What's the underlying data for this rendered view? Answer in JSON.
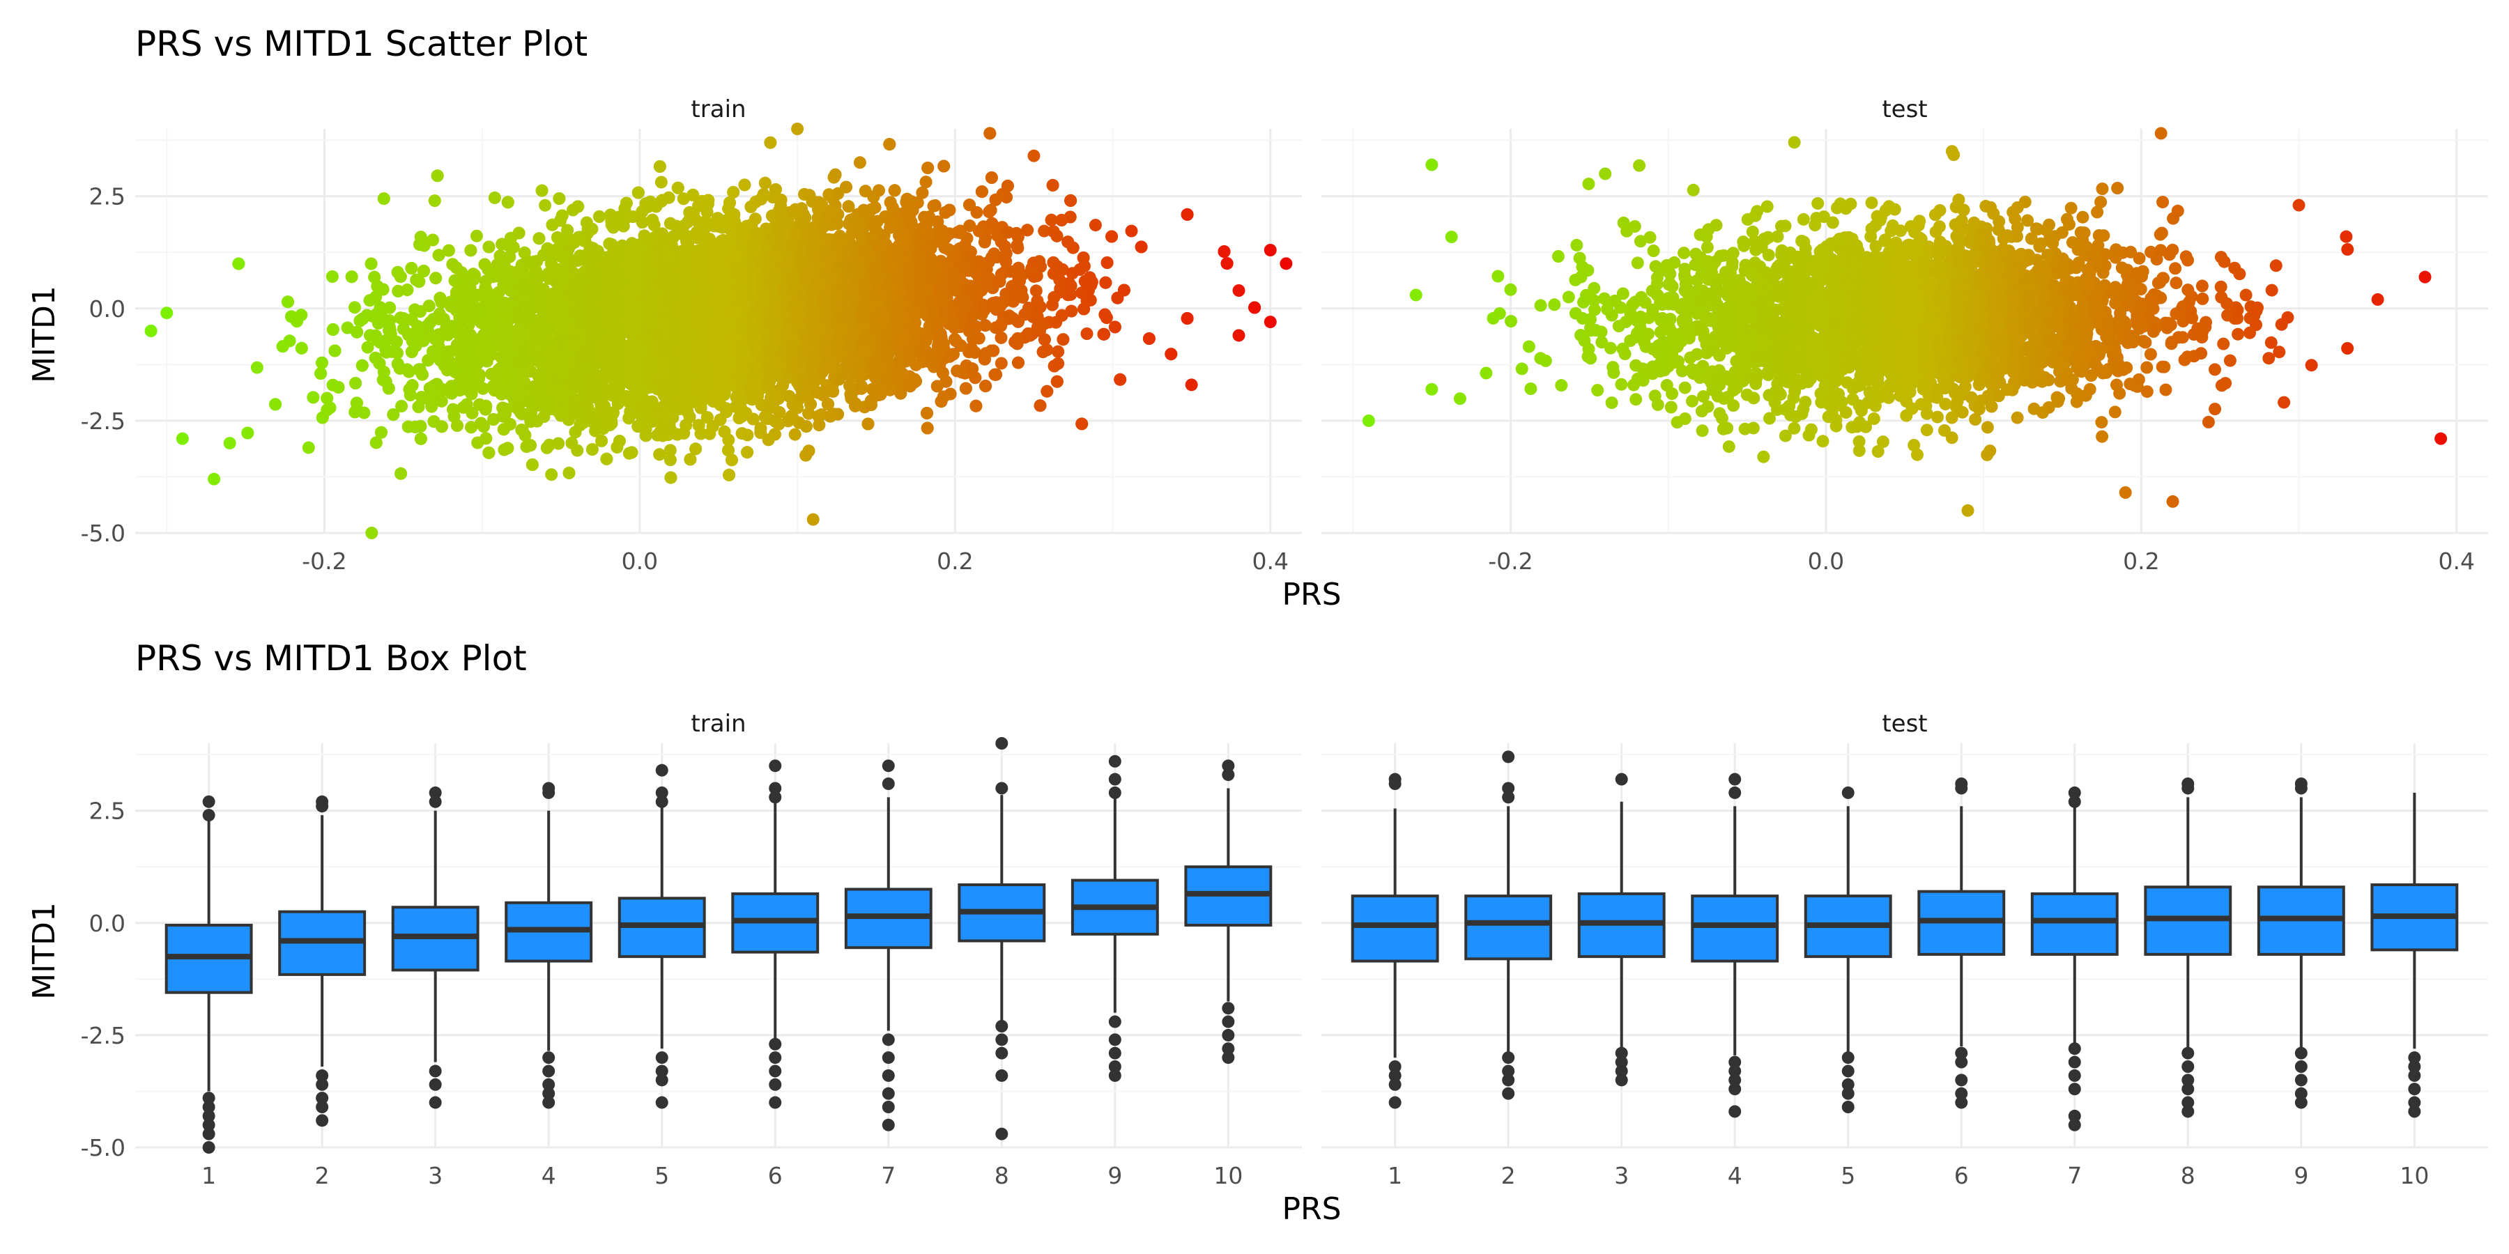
{
  "colors": {
    "grid_major": "#ebebeb",
    "grid_minor": "#f5f5f5",
    "text": "#222222",
    "tick_text": "#4d4d4d",
    "box_fill": "#1e90ff",
    "box_stroke": "#333333",
    "outlier": "#333333",
    "gradient_low": "#7cf000",
    "gradient_mid": "#c2b800",
    "gradient_high": "#f00000"
  },
  "chart_data": [
    {
      "type": "scatter",
      "title": "PRS vs MITD1 Scatter Plot",
      "xlabel": "PRS",
      "ylabel": "MITD1",
      "grid": true,
      "color_scale": "gradient by PRS: green (low) to red (high)",
      "x_ticks": [
        -0.2,
        0.0,
        0.2,
        0.4
      ],
      "x_tick_labels": [
        "-0.2",
        "0.0",
        "0.2",
        "0.4"
      ],
      "y_ticks": [
        -5.0,
        -2.5,
        0.0,
        2.5
      ],
      "y_tick_labels": [
        "-5.0",
        "-2.5",
        "0.0",
        "2.5"
      ],
      "ylim": [
        -5.0,
        4.0
      ],
      "panels": [
        {
          "facet": "train",
          "xlim": [
            -0.32,
            0.42
          ],
          "x_mean": 0.05,
          "x_sd": 0.09,
          "y_intercept": -0.35,
          "y_slope": 3.4,
          "y_resid_sd": 1.05,
          "approx_points": 60000,
          "extreme_points": [
            {
              "x": 0.41,
              "y": 1.0
            },
            {
              "x": 0.4,
              "y": 1.3
            },
            {
              "x": 0.4,
              "y": -0.3
            },
            {
              "x": 0.38,
              "y": 0.4
            },
            {
              "x": 0.38,
              "y": -0.6
            },
            {
              "x": 0.35,
              "y": -1.7
            },
            {
              "x": -0.31,
              "y": -0.5
            },
            {
              "x": -0.3,
              "y": -0.1
            },
            {
              "x": -0.29,
              "y": -2.9
            },
            {
              "x": -0.27,
              "y": -3.8
            },
            {
              "x": -0.26,
              "y": -3.0
            },
            {
              "x": -0.21,
              "y": -3.1
            },
            {
              "x": -0.17,
              "y": -5.0
            },
            {
              "x": 0.11,
              "y": -4.7
            },
            {
              "x": 0.1,
              "y": 4.0
            },
            {
              "x": 0.25,
              "y": 3.4
            },
            {
              "x": -0.13,
              "y": 2.4
            }
          ]
        },
        {
          "facet": "test",
          "xlim": [
            -0.32,
            0.42
          ],
          "x_mean": 0.05,
          "x_sd": 0.085,
          "y_intercept": -0.25,
          "y_slope": 1.1,
          "y_resid_sd": 1.0,
          "approx_points": 15000,
          "extreme_points": [
            {
              "x": 0.39,
              "y": -2.9
            },
            {
              "x": 0.38,
              "y": 0.7
            },
            {
              "x": 0.35,
              "y": 0.2
            },
            {
              "x": 0.33,
              "y": 1.6
            },
            {
              "x": 0.3,
              "y": 2.3
            },
            {
              "x": -0.29,
              "y": -2.5
            },
            {
              "x": -0.25,
              "y": 3.2
            },
            {
              "x": -0.26,
              "y": 0.3
            },
            {
              "x": -0.25,
              "y": -1.8
            },
            {
              "x": -0.14,
              "y": 3.0
            },
            {
              "x": -0.02,
              "y": 3.7
            },
            {
              "x": 0.19,
              "y": -4.1
            },
            {
              "x": 0.22,
              "y": -4.3
            },
            {
              "x": 0.09,
              "y": -4.5
            },
            {
              "x": 0.08,
              "y": 3.5
            }
          ]
        }
      ]
    },
    {
      "type": "box",
      "title": "PRS vs MITD1 Box Plot",
      "xlabel": "PRS",
      "ylabel": "MITD1",
      "grid": true,
      "categories": [
        "1",
        "2",
        "3",
        "4",
        "5",
        "6",
        "7",
        "8",
        "9",
        "10"
      ],
      "y_ticks": [
        -5.0,
        -2.5,
        0.0,
        2.5
      ],
      "y_tick_labels": [
        "-5.0",
        "-2.5",
        "0.0",
        "2.5"
      ],
      "ylim": [
        -5.0,
        4.0
      ],
      "panels": [
        {
          "facet": "train",
          "boxes": [
            {
              "q1": -1.55,
              "median": -0.75,
              "q3": -0.05,
              "whisker_low": -3.75,
              "whisker_high": 2.3,
              "outliers": [
                2.7,
                2.4,
                -3.9,
                -4.1,
                -4.3,
                -4.5,
                -4.7,
                -5.0
              ]
            },
            {
              "q1": -1.15,
              "median": -0.4,
              "q3": 0.25,
              "whisker_low": -3.2,
              "whisker_high": 2.4,
              "outliers": [
                2.7,
                2.6,
                -3.4,
                -3.6,
                -3.9,
                -4.1,
                -4.4
              ]
            },
            {
              "q1": -1.05,
              "median": -0.3,
              "q3": 0.35,
              "whisker_low": -3.1,
              "whisker_high": 2.5,
              "outliers": [
                2.9,
                2.7,
                -3.3,
                -3.6,
                -4.0
              ]
            },
            {
              "q1": -0.85,
              "median": -0.15,
              "q3": 0.45,
              "whisker_low": -2.85,
              "whisker_high": 2.5,
              "outliers": [
                3.0,
                2.9,
                -3.0,
                -3.3,
                -3.6,
                -3.8,
                -4.0
              ]
            },
            {
              "q1": -0.75,
              "median": -0.05,
              "q3": 0.55,
              "whisker_low": -2.8,
              "whisker_high": 2.6,
              "outliers": [
                3.4,
                2.9,
                2.7,
                -3.0,
                -3.3,
                -3.5,
                -4.0
              ]
            },
            {
              "q1": -0.65,
              "median": 0.05,
              "q3": 0.65,
              "whisker_low": -2.6,
              "whisker_high": 2.7,
              "outliers": [
                3.5,
                3.0,
                2.8,
                -2.7,
                -3.0,
                -3.3,
                -3.6,
                -4.0
              ]
            },
            {
              "q1": -0.55,
              "median": 0.15,
              "q3": 0.75,
              "whisker_low": -2.4,
              "whisker_high": 2.8,
              "outliers": [
                3.5,
                3.1,
                -2.6,
                -3.0,
                -3.4,
                -3.8,
                -4.1,
                -4.5
              ]
            },
            {
              "q1": -0.4,
              "median": 0.25,
              "q3": 0.85,
              "whisker_low": -2.2,
              "whisker_high": 2.85,
              "outliers": [
                4.0,
                3.0,
                -2.3,
                -2.6,
                -2.9,
                -3.4,
                -4.7
              ]
            },
            {
              "q1": -0.25,
              "median": 0.35,
              "q3": 0.95,
              "whisker_low": -2.0,
              "whisker_high": 2.9,
              "outliers": [
                3.6,
                3.2,
                2.9,
                -2.2,
                -2.6,
                -2.9,
                -3.2,
                -3.4
              ]
            },
            {
              "q1": -0.05,
              "median": 0.65,
              "q3": 1.25,
              "whisker_low": -1.75,
              "whisker_high": 3.0,
              "outliers": [
                3.5,
                3.3,
                -1.9,
                -2.2,
                -2.5,
                -2.8,
                -3.0
              ]
            }
          ]
        },
        {
          "facet": "test",
          "boxes": [
            {
              "q1": -0.85,
              "median": -0.05,
              "q3": 0.6,
              "whisker_low": -3.0,
              "whisker_high": 2.55,
              "outliers": [
                3.2,
                3.1,
                -3.2,
                -3.4,
                -3.6,
                -4.0
              ]
            },
            {
              "q1": -0.8,
              "median": 0.0,
              "q3": 0.6,
              "whisker_low": -2.9,
              "whisker_high": 2.6,
              "outliers": [
                3.7,
                3.0,
                2.8,
                -3.0,
                -3.3,
                -3.5,
                -3.8
              ]
            },
            {
              "q1": -0.75,
              "median": 0.0,
              "q3": 0.65,
              "whisker_low": -2.85,
              "whisker_high": 2.7,
              "outliers": [
                3.2,
                -2.9,
                -3.1,
                -3.3,
                -3.5
              ]
            },
            {
              "q1": -0.85,
              "median": -0.05,
              "q3": 0.6,
              "whisker_low": -2.95,
              "whisker_high": 2.6,
              "outliers": [
                3.2,
                2.9,
                -3.1,
                -3.3,
                -3.5,
                -3.7,
                -4.2
              ]
            },
            {
              "q1": -0.75,
              "median": -0.05,
              "q3": 0.6,
              "whisker_low": -2.9,
              "whisker_high": 2.6,
              "outliers": [
                2.9,
                -3.0,
                -3.3,
                -3.6,
                -3.8,
                -4.1
              ]
            },
            {
              "q1": -0.7,
              "median": 0.05,
              "q3": 0.7,
              "whisker_low": -2.75,
              "whisker_high": 2.6,
              "outliers": [
                3.1,
                3.0,
                -2.9,
                -3.1,
                -3.5,
                -3.8,
                -4.0
              ]
            },
            {
              "q1": -0.7,
              "median": 0.05,
              "q3": 0.65,
              "whisker_low": -2.75,
              "whisker_high": 2.6,
              "outliers": [
                2.9,
                2.7,
                -2.8,
                -3.1,
                -3.4,
                -3.7,
                -4.3,
                -4.5
              ]
            },
            {
              "q1": -0.7,
              "median": 0.1,
              "q3": 0.8,
              "whisker_low": -2.8,
              "whisker_high": 2.8,
              "outliers": [
                3.1,
                3.0,
                -2.9,
                -3.2,
                -3.5,
                -3.7,
                -4.0,
                -4.2
              ]
            },
            {
              "q1": -0.7,
              "median": 0.1,
              "q3": 0.8,
              "whisker_low": -2.8,
              "whisker_high": 2.8,
              "outliers": [
                3.1,
                3.0,
                -2.9,
                -3.2,
                -3.5,
                -3.8,
                -4.0
              ]
            },
            {
              "q1": -0.6,
              "median": 0.15,
              "q3": 0.85,
              "whisker_low": -2.8,
              "whisker_high": 2.9,
              "outliers": [
                -3.0,
                -3.2,
                -3.4,
                -3.7,
                -4.0,
                -4.2
              ]
            }
          ]
        }
      ]
    }
  ]
}
